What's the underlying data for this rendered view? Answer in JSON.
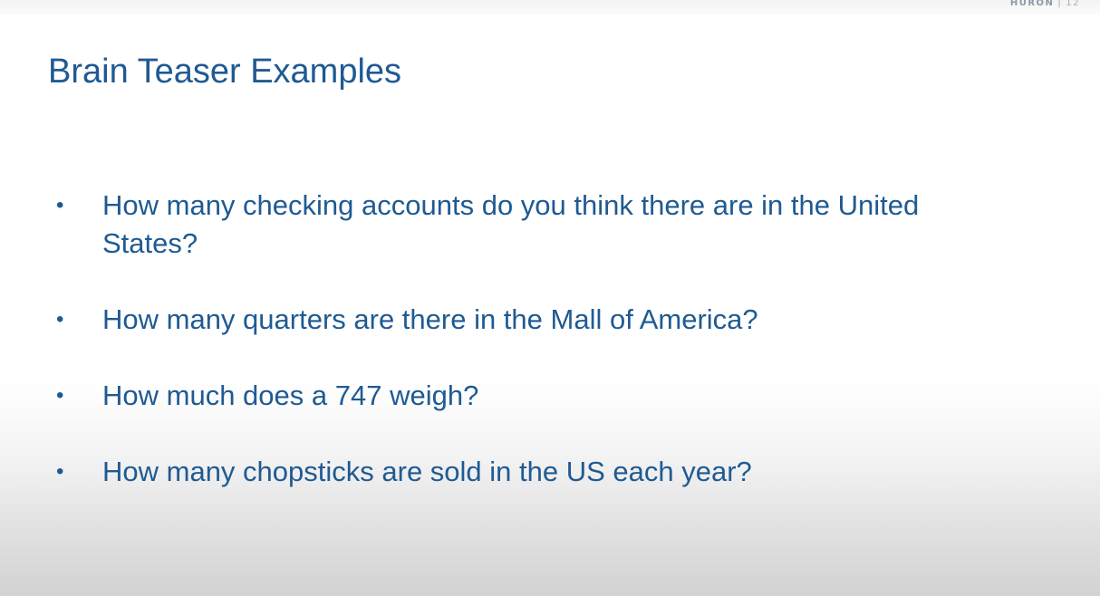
{
  "header": {
    "brand": "HURON",
    "separator": "|",
    "page_number": "12"
  },
  "slide": {
    "title": "Brain Teaser Examples",
    "bullets": [
      "How many checking accounts do you think there are in the United States?",
      "How many quarters are there in the Mall of America?",
      "How much does a 747 weigh?",
      "How many chopsticks are sold in the US each year?"
    ]
  },
  "colors": {
    "title": "#1f5a93",
    "text": "#1f5a93",
    "brand": "#8a9aac"
  }
}
